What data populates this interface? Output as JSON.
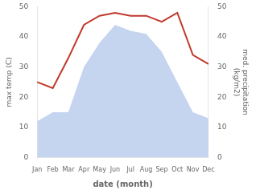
{
  "chart_data": {
    "type": "line",
    "categories": [
      "Jan",
      "Feb",
      "Mar",
      "Apr",
      "May",
      "Jun",
      "Jul",
      "Aug",
      "Sep",
      "Oct",
      "Nov",
      "Dec"
    ],
    "series": [
      {
        "type": "area",
        "color": "#c5d4ef",
        "values": [
          12,
          15,
          15,
          30,
          38,
          44,
          42,
          41,
          35,
          25,
          15,
          13
        ]
      },
      {
        "type": "line",
        "color": "#c0392b",
        "axis": "y2",
        "values": [
          25,
          23,
          33,
          44,
          47,
          48,
          47,
          47,
          45,
          48,
          34,
          31
        ]
      }
    ],
    "xlabel": "date (month)",
    "ylabel": "max temp (C)",
    "y2label": "med. precipitation\n(kg/m2)",
    "ylim": [
      0,
      50
    ],
    "yticks": [
      0,
      10,
      20,
      30,
      40,
      50
    ],
    "y2lim": [
      0,
      50
    ],
    "y2ticks": [
      0,
      10,
      20,
      30,
      40,
      50
    ],
    "grid": false
  }
}
